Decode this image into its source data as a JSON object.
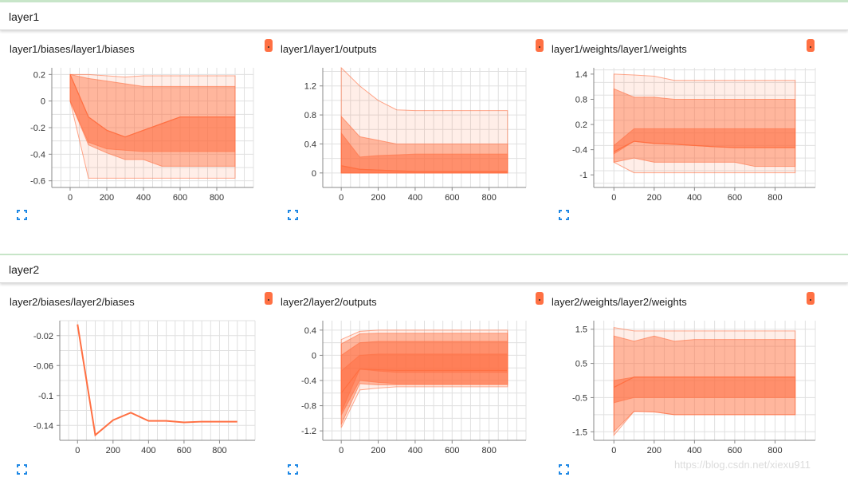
{
  "sections": [
    {
      "title": "layer1"
    },
    {
      "title": "layer2"
    }
  ],
  "colors": {
    "accent": "#ff7043",
    "band": "#ff7043",
    "expand_icon": "#1e88e5",
    "separator": "#c8e6c9"
  },
  "icons": {
    "menu": "more-vert-icon",
    "expand": "fullscreen-icon"
  },
  "watermark": "https://blog.csdn.net/xiexu911",
  "chart_data": [
    {
      "type": "area",
      "title": "layer1/biases/layer1/biases",
      "x": [
        0,
        100,
        200,
        300,
        400,
        500,
        600,
        700,
        800,
        900
      ],
      "x_ticks": [
        "0",
        "200",
        "400",
        "600",
        "800"
      ],
      "y_ticks": [
        "0.2",
        "0",
        "-0.2",
        "-0.4",
        "-0.6"
      ],
      "ylim": [
        -0.65,
        0.25
      ],
      "bands": [
        {
          "upper": [
            0.2,
            0.2,
            0.19,
            0.18,
            0.19,
            0.19,
            0.19,
            0.19,
            0.19,
            0.19
          ],
          "lower": [
            0.0,
            -0.58,
            -0.58,
            -0.58,
            -0.58,
            -0.58,
            -0.58,
            -0.58,
            -0.58,
            -0.58
          ]
        },
        {
          "upper": [
            0.2,
            0.17,
            0.15,
            0.13,
            0.11,
            0.11,
            0.11,
            0.11,
            0.11,
            0.11
          ],
          "lower": [
            0.0,
            -0.33,
            -0.39,
            -0.44,
            -0.44,
            -0.49,
            -0.49,
            -0.49,
            -0.49,
            -0.49
          ]
        },
        {
          "upper": [
            0.2,
            -0.12,
            -0.22,
            -0.27,
            -0.22,
            -0.17,
            -0.12,
            -0.12,
            -0.12,
            -0.12
          ],
          "lower": [
            0.0,
            -0.31,
            -0.36,
            -0.37,
            -0.38,
            -0.38,
            -0.38,
            -0.38,
            -0.38,
            -0.38
          ]
        }
      ],
      "median": [
        0.2,
        -0.12,
        -0.22,
        -0.27,
        -0.22,
        -0.17,
        -0.12,
        -0.12,
        -0.12,
        -0.12
      ]
    },
    {
      "type": "area",
      "title": "layer1/layer1/outputs",
      "x": [
        0,
        100,
        200,
        300,
        400,
        500,
        600,
        700,
        800,
        900
      ],
      "x_ticks": [
        "0",
        "200",
        "400",
        "600",
        "800"
      ],
      "y_ticks": [
        "1.2",
        "0.8",
        "0.4",
        "0"
      ],
      "ylim": [
        -0.2,
        1.45
      ],
      "bands": [
        {
          "upper": [
            1.45,
            1.2,
            1.0,
            0.87,
            0.86,
            0.86,
            0.86,
            0.86,
            0.86,
            0.86
          ],
          "lower": [
            0,
            0,
            0,
            0,
            0,
            0,
            0,
            0,
            0,
            0
          ]
        },
        {
          "upper": [
            0.78,
            0.5,
            0.45,
            0.4,
            0.4,
            0.4,
            0.4,
            0.4,
            0.4,
            0.4
          ],
          "lower": [
            0,
            0,
            0,
            0,
            0,
            0,
            0,
            0,
            0,
            0
          ]
        },
        {
          "upper": [
            0.55,
            0.22,
            0.24,
            0.25,
            0.26,
            0.26,
            0.26,
            0.26,
            0.26,
            0.26
          ],
          "lower": [
            0,
            0,
            0,
            0,
            0,
            0,
            0,
            0,
            0,
            0
          ]
        },
        {
          "upper": [
            0.1,
            0.05,
            0.04,
            0.03,
            0.02,
            0.02,
            0.02,
            0.02,
            0.02,
            0.02
          ],
          "lower": [
            0,
            0,
            0,
            0,
            0,
            0,
            0,
            0,
            0,
            0
          ]
        }
      ],
      "median": [
        0.1,
        0.05,
        0.04,
        0.03,
        0.02,
        0.02,
        0.02,
        0.02,
        0.02,
        0.02
      ]
    },
    {
      "type": "area",
      "title": "layer1/weights/layer1/weights",
      "x": [
        0,
        100,
        200,
        300,
        400,
        500,
        600,
        700,
        800,
        900
      ],
      "x_ticks": [
        "0",
        "200",
        "400",
        "600",
        "800"
      ],
      "y_ticks": [
        "1.4",
        "0.8",
        "0.2",
        "-0.4",
        "-1"
      ],
      "ylim": [
        -1.3,
        1.55
      ],
      "bands": [
        {
          "upper": [
            1.4,
            1.38,
            1.35,
            1.25,
            1.25,
            1.25,
            1.25,
            1.25,
            1.25,
            1.25
          ],
          "lower": [
            -0.7,
            -0.95,
            -0.95,
            -0.95,
            -0.95,
            -0.95,
            -0.95,
            -0.95,
            -0.95,
            -0.95
          ]
        },
        {
          "upper": [
            1.05,
            0.85,
            0.85,
            0.8,
            0.8,
            0.8,
            0.8,
            0.8,
            0.8,
            0.8
          ],
          "lower": [
            -0.7,
            -0.6,
            -0.7,
            -0.7,
            -0.7,
            -0.7,
            -0.7,
            -0.8,
            -0.8,
            -0.8
          ]
        },
        {
          "upper": [
            -0.3,
            0.1,
            0.1,
            0.1,
            0.1,
            0.1,
            0.1,
            0.1,
            0.1,
            0.1
          ],
          "lower": [
            -0.5,
            -0.2,
            -0.25,
            -0.27,
            -0.3,
            -0.33,
            -0.35,
            -0.35,
            -0.35,
            -0.35
          ]
        }
      ],
      "median": [
        -0.45,
        -0.2,
        -0.25,
        -0.27,
        -0.3,
        -0.33,
        -0.35,
        -0.35,
        -0.35,
        -0.35
      ]
    },
    {
      "type": "line",
      "title": "layer2/biases/layer2/biases",
      "x": [
        0,
        100,
        200,
        300,
        400,
        500,
        600,
        700,
        800,
        900
      ],
      "x_ticks": [
        "0",
        "200",
        "400",
        "600",
        "800"
      ],
      "y_ticks": [
        "-0.02",
        "-0.06",
        "-0.1",
        "-0.14"
      ],
      "ylim": [
        -0.16,
        0.0
      ],
      "bands": [],
      "median": [
        -0.005,
        -0.153,
        -0.133,
        -0.123,
        -0.134,
        -0.134,
        -0.136,
        -0.135,
        -0.135,
        -0.135
      ]
    },
    {
      "type": "area",
      "title": "layer2/layer2/outputs",
      "x": [
        0,
        100,
        200,
        300,
        400,
        500,
        600,
        700,
        800,
        900
      ],
      "x_ticks": [
        "0",
        "200",
        "400",
        "600",
        "800"
      ],
      "y_ticks": [
        "0.4",
        "0",
        "-0.4",
        "-0.8",
        "-1.2"
      ],
      "ylim": [
        -1.35,
        0.55
      ],
      "bands": [
        {
          "upper": [
            0.25,
            0.38,
            0.4,
            0.4,
            0.4,
            0.4,
            0.4,
            0.4,
            0.4,
            0.4
          ],
          "lower": [
            -1.15,
            -0.55,
            -0.52,
            -0.5,
            -0.5,
            -0.5,
            -0.5,
            -0.5,
            -0.5,
            -0.5
          ]
        },
        {
          "upper": [
            0.18,
            0.34,
            0.35,
            0.35,
            0.35,
            0.35,
            0.35,
            0.35,
            0.35,
            0.35
          ],
          "lower": [
            -1.1,
            -0.45,
            -0.47,
            -0.47,
            -0.47,
            -0.47,
            -0.47,
            -0.47,
            -0.47,
            -0.47
          ]
        },
        {
          "upper": [
            0.0,
            0.2,
            0.22,
            0.22,
            0.22,
            0.22,
            0.22,
            0.22,
            0.22,
            0.22
          ],
          "lower": [
            -0.95,
            -0.4,
            -0.43,
            -0.45,
            -0.45,
            -0.45,
            -0.45,
            -0.45,
            -0.45,
            -0.45
          ]
        },
        {
          "upper": [
            -0.25,
            0.0,
            0.02,
            0.02,
            0.02,
            0.02,
            0.02,
            0.02,
            0.02,
            0.02
          ],
          "lower": [
            -0.9,
            -0.22,
            -0.25,
            -0.27,
            -0.27,
            -0.27,
            -0.27,
            -0.27,
            -0.27,
            -0.27
          ]
        }
      ],
      "median": [
        -0.6,
        -0.22,
        -0.23,
        -0.24,
        -0.24,
        -0.24,
        -0.24,
        -0.24,
        -0.24,
        -0.24
      ]
    },
    {
      "type": "area",
      "title": "layer2/weights/layer2/weights",
      "x": [
        0,
        100,
        200,
        300,
        400,
        500,
        600,
        700,
        800,
        900
      ],
      "x_ticks": [
        "0",
        "200",
        "400",
        "600",
        "800"
      ],
      "y_ticks": [
        "1.5",
        "0.5",
        "-0.5",
        "-1.5"
      ],
      "ylim": [
        -1.75,
        1.75
      ],
      "bands": [
        {
          "upper": [
            1.55,
            1.45,
            1.45,
            1.45,
            1.45,
            1.45,
            1.45,
            1.45,
            1.45,
            1.45
          ],
          "lower": [
            -1.6,
            -0.9,
            -0.92,
            -1.0,
            -1.0,
            -1.0,
            -1.0,
            -1.0,
            -1.0,
            -1.0
          ]
        },
        {
          "upper": [
            1.3,
            1.15,
            1.3,
            1.15,
            1.2,
            1.2,
            1.2,
            1.2,
            1.2,
            1.2
          ],
          "lower": [
            -1.5,
            -0.9,
            -0.92,
            -1.0,
            -1.0,
            -1.0,
            -1.0,
            -1.0,
            -1.0,
            -1.0
          ]
        },
        {
          "upper": [
            0.0,
            0.1,
            0.1,
            0.1,
            0.1,
            0.1,
            0.1,
            0.1,
            0.1,
            0.1
          ],
          "lower": [
            -0.65,
            -0.5,
            -0.5,
            -0.5,
            -0.5,
            -0.5,
            -0.5,
            -0.5,
            -0.5,
            -0.5
          ]
        }
      ],
      "median": [
        -0.2,
        0.1,
        0.1,
        0.1,
        0.1,
        0.1,
        0.1,
        0.1,
        0.1,
        0.1
      ]
    }
  ]
}
